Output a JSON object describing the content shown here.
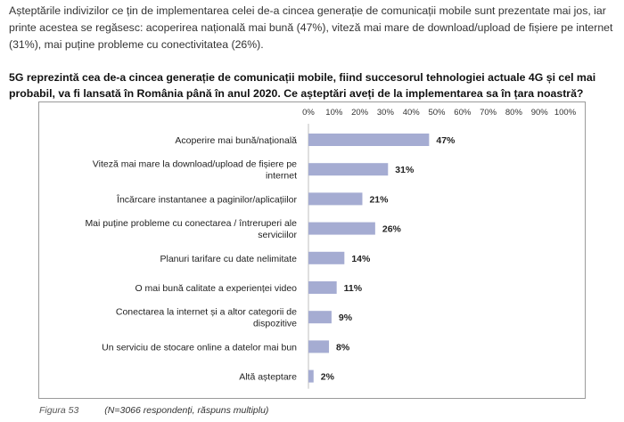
{
  "intro_text": "Așteptările indivizilor ce țin de implementarea celei de-a cincea generație de comunicații mobile sunt prezentate mai jos, iar printe acestea se regăsesc: acoperirea națională mai bună (47%), viteză mai mare de download/upload de fișiere pe internet (31%), mai puține probleme cu conectivitatea (26%).",
  "question_text": "5G reprezintă cea de-a cincea generație de comunicații mobile, fiind succesorul tehnologiei actuale 4G și cel mai probabil, va fi lansată în România până în anul 2020. Ce așteptări aveți de la implementarea sa în țara noastră?",
  "caption": {
    "figure": "Figura 53",
    "note": "(N=3066 respondenți, răspuns multiplu)"
  },
  "colors": {
    "bar": "#a5acd2",
    "grid": "#d9d9d9",
    "frame": "#9a9a9a"
  },
  "chart_data": {
    "type": "bar",
    "orientation": "horizontal",
    "title": "",
    "xlabel": "",
    "ylabel": "",
    "xlim": [
      0,
      100
    ],
    "x_ticks": [
      "0%",
      "10%",
      "20%",
      "30%",
      "40%",
      "50%",
      "60%",
      "70%",
      "80%",
      "90%",
      "100%"
    ],
    "categories": [
      [
        "Acoperire mai bună/națională"
      ],
      [
        "Viteză mai mare la download/upload de fișiere pe",
        "internet"
      ],
      [
        "Încărcare instantanee a paginilor/aplicațiilor"
      ],
      [
        "Mai puține probleme cu conectarea / întreruperi ale",
        "serviciilor"
      ],
      [
        "Planuri tarifare cu date nelimitate"
      ],
      [
        "O mai bună calitate a experienței video"
      ],
      [
        "Conectarea la internet și a altor categorii de",
        "dispozitive"
      ],
      [
        "Un serviciu de stocare online a datelor mai bun"
      ],
      [
        "Altă așteptare"
      ]
    ],
    "values": [
      47,
      31,
      21,
      26,
      14,
      11,
      9,
      8,
      2
    ],
    "value_labels": [
      "47%",
      "31%",
      "21%",
      "26%",
      "14%",
      "11%",
      "9%",
      "8%",
      "2%"
    ]
  }
}
